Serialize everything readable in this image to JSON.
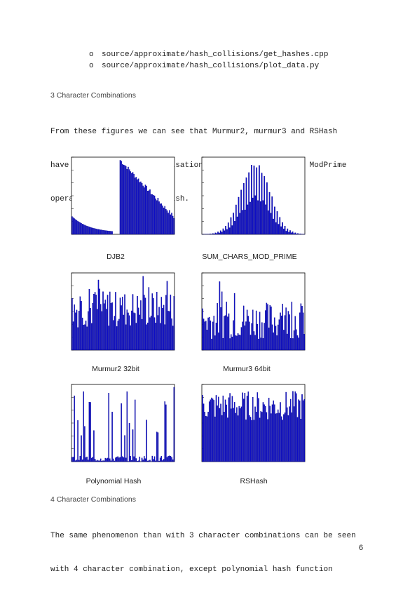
{
  "bullets": [
    {
      "marker": "o",
      "text": "source/approximate/hash_collisions/get_hashes.cpp"
    },
    {
      "marker": "o",
      "text": "source/approximate/hash_collisions/plot_data.py"
    }
  ],
  "section3": {
    "heading": "3 Character Combinations",
    "lines": [
      "From these figures we can see that Murmur2, murmur3 and RSHash",
      "have clearly better randomisation properties than DJB2, ModPrime",
      "operation and polynomial hash."
    ]
  },
  "section4": {
    "heading": "4 Character Combinations",
    "lines": [
      "The same phenomenon than with 3 character combinations can be seen",
      "with 4 character combination, except polynomial hash function"
    ]
  },
  "page_number": "6",
  "colors": {
    "bar": "#1010c8",
    "bar_dark": "#00008a"
  },
  "chart_data": [
    {
      "id": "djb2",
      "type": "bar",
      "caption": "DJB2",
      "pattern": "djb2"
    },
    {
      "id": "modprime",
      "type": "bar",
      "caption": "SUM_CHARS_MOD_PRIME",
      "pattern": "bell"
    },
    {
      "id": "murmur2",
      "type": "bar",
      "caption": "Murmur2 32bit",
      "pattern": "noise"
    },
    {
      "id": "murmur3",
      "type": "bar",
      "caption": "Murmur3 64bit",
      "pattern": "noise2"
    },
    {
      "id": "poly",
      "type": "bar",
      "caption": "Polynomial Hash",
      "pattern": "sparse"
    },
    {
      "id": "rshash",
      "type": "bar",
      "caption": "RSHash",
      "pattern": "dense"
    }
  ]
}
